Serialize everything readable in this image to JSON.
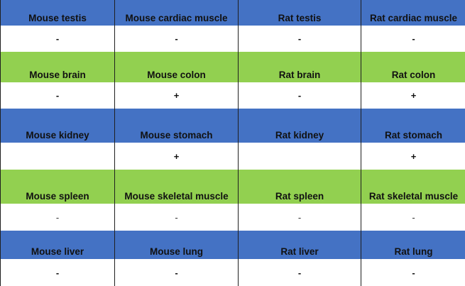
{
  "rows": [
    {
      "color": "#4472c4",
      "headers": [
        "Mouse testis",
        "Mouse cardiac muscle",
        "Rat testis",
        "Rat cardiac muscle"
      ],
      "values": [
        "-",
        "-",
        "-",
        "-"
      ]
    },
    {
      "color": "#92d050",
      "headers": [
        "Mouse brain",
        "Mouse colon",
        "Rat brain",
        "Rat colon"
      ],
      "values": [
        "-",
        "+",
        "-",
        "+"
      ]
    },
    {
      "color": "#4472c4",
      "headers": [
        "Mouse kidney",
        "Mouse stomach",
        "Rat kidney",
        "Rat stomach"
      ],
      "values": [
        "",
        "+",
        "",
        "+"
      ]
    },
    {
      "color": "#92d050",
      "headers": [
        "Mouse spleen",
        "Mouse skeletal muscle",
        "Rat spleen",
        "Rat skeletal muscle"
      ],
      "values": [
        "-",
        "-",
        "-",
        "-"
      ]
    },
    {
      "color": "#4472c4",
      "headers": [
        "Mouse liver",
        "Mouse lung",
        "Rat liver",
        "Rat lung"
      ],
      "values": [
        "-",
        "-",
        "-",
        "-"
      ]
    }
  ]
}
